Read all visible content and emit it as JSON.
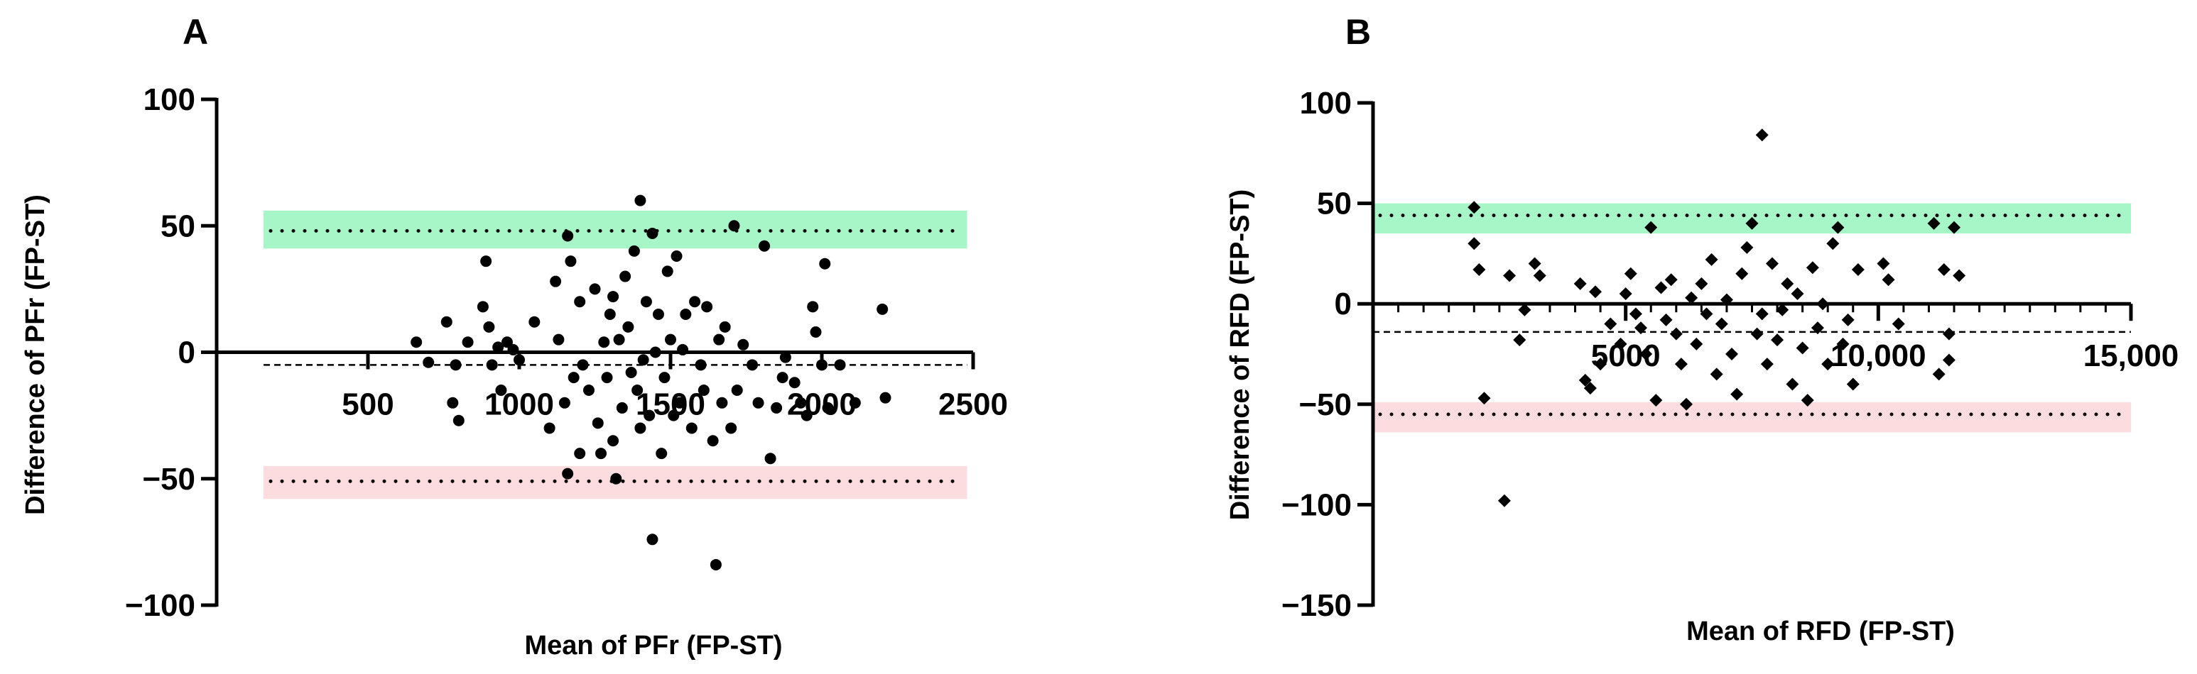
{
  "chart_data": [
    {
      "panel": "A",
      "type": "scatter",
      "subtype": "bland-altman",
      "title": "",
      "xlabel": "Mean of PFr (FP-ST)",
      "ylabel": "Difference of PFr (FP-ST)",
      "xlim": [
        0,
        2500
      ],
      "ylim": [
        -100,
        100
      ],
      "xticks": [
        500,
        1000,
        1500,
        2000,
        2500
      ],
      "xtick_labels": [
        "500",
        "1000",
        "1500",
        "2000",
        "2500"
      ],
      "yticks": [
        100,
        50,
        0,
        -50,
        -100
      ],
      "ytick_labels": [
        "100",
        "50",
        "0",
        "−50",
        "−100"
      ],
      "x_axis_at_y": 0,
      "band_xrange": [
        155,
        2480
      ],
      "upper_loa": 48,
      "upper_ci": [
        41,
        56
      ],
      "lower_loa": -51,
      "lower_ci": [
        -58,
        -45
      ],
      "bias": -5,
      "marker": "circle",
      "points": [
        [
          660,
          4
        ],
        [
          700,
          -4
        ],
        [
          760,
          12
        ],
        [
          780,
          -20
        ],
        [
          790,
          -5
        ],
        [
          800,
          -27
        ],
        [
          830,
          4
        ],
        [
          880,
          18
        ],
        [
          890,
          36
        ],
        [
          900,
          10
        ],
        [
          910,
          -5
        ],
        [
          930,
          2
        ],
        [
          940,
          -15
        ],
        [
          960,
          4
        ],
        [
          980,
          1
        ],
        [
          1000,
          -3
        ],
        [
          1050,
          12
        ],
        [
          1100,
          -30
        ],
        [
          1120,
          28
        ],
        [
          1130,
          5
        ],
        [
          1150,
          -20
        ],
        [
          1160,
          46
        ],
        [
          1160,
          -48
        ],
        [
          1170,
          36
        ],
        [
          1180,
          -10
        ],
        [
          1200,
          20
        ],
        [
          1200,
          -40
        ],
        [
          1210,
          -5
        ],
        [
          1230,
          -15
        ],
        [
          1250,
          25
        ],
        [
          1260,
          -28
        ],
        [
          1270,
          -40
        ],
        [
          1280,
          4
        ],
        [
          1290,
          -10
        ],
        [
          1300,
          15
        ],
        [
          1310,
          -35
        ],
        [
          1310,
          22
        ],
        [
          1320,
          -50
        ],
        [
          1330,
          5
        ],
        [
          1340,
          -22
        ],
        [
          1350,
          30
        ],
        [
          1360,
          10
        ],
        [
          1370,
          -8
        ],
        [
          1380,
          40
        ],
        [
          1390,
          -15
        ],
        [
          1400,
          60
        ],
        [
          1400,
          -30
        ],
        [
          1410,
          -3
        ],
        [
          1420,
          20
        ],
        [
          1430,
          -25
        ],
        [
          1440,
          47
        ],
        [
          1440,
          -74
        ],
        [
          1450,
          0
        ],
        [
          1460,
          15
        ],
        [
          1470,
          -40
        ],
        [
          1480,
          -10
        ],
        [
          1490,
          32
        ],
        [
          1500,
          5
        ],
        [
          1510,
          -25
        ],
        [
          1520,
          38
        ],
        [
          1530,
          -20
        ],
        [
          1540,
          1
        ],
        [
          1550,
          15
        ],
        [
          1570,
          -30
        ],
        [
          1580,
          20
        ],
        [
          1600,
          -5
        ],
        [
          1610,
          -15
        ],
        [
          1620,
          18
        ],
        [
          1640,
          -35
        ],
        [
          1650,
          -84
        ],
        [
          1660,
          5
        ],
        [
          1670,
          -20
        ],
        [
          1680,
          10
        ],
        [
          1700,
          -30
        ],
        [
          1710,
          50
        ],
        [
          1720,
          -15
        ],
        [
          1740,
          3
        ],
        [
          1770,
          -5
        ],
        [
          1790,
          -20
        ],
        [
          1810,
          42
        ],
        [
          1830,
          -42
        ],
        [
          1850,
          -22
        ],
        [
          1870,
          -10
        ],
        [
          1880,
          -2
        ],
        [
          1910,
          -12
        ],
        [
          1930,
          -20
        ],
        [
          1950,
          -25
        ],
        [
          1970,
          18
        ],
        [
          1980,
          8
        ],
        [
          2000,
          -5
        ],
        [
          2010,
          35
        ],
        [
          2020,
          -22
        ],
        [
          2060,
          -5
        ],
        [
          2110,
          -20
        ],
        [
          2200,
          17
        ],
        [
          2210,
          -18
        ]
      ]
    },
    {
      "panel": "B",
      "type": "scatter",
      "subtype": "bland-altman",
      "title": "",
      "xlabel": "Mean of  RFD  (FP-ST)",
      "ylabel": "Difference of  RFD (FP-ST)",
      "xlim": [
        0,
        15000
      ],
      "ylim": [
        -150,
        100
      ],
      "xticks": [
        5000,
        10000,
        15000
      ],
      "xtick_labels": [
        "5000",
        "10,000",
        "15,000"
      ],
      "yticks": [
        100,
        50,
        0,
        -50,
        -100,
        -150
      ],
      "ytick_labels": [
        "100",
        "50",
        "0",
        "−50",
        "−100",
        "−150"
      ],
      "x_axis_at_y": 0,
      "minor_xtick_step": 500,
      "band_xrange": [
        0,
        15000
      ],
      "upper_loa": 44,
      "upper_ci": [
        35,
        50
      ],
      "lower_loa": -55,
      "lower_ci": [
        -64,
        -49
      ],
      "bias": -14,
      "marker": "diamond",
      "points": [
        [
          2000,
          48
        ],
        [
          2000,
          30
        ],
        [
          2100,
          17
        ],
        [
          2200,
          -47
        ],
        [
          2600,
          -98
        ],
        [
          2700,
          14
        ],
        [
          2900,
          -18
        ],
        [
          3000,
          -3
        ],
        [
          3200,
          20
        ],
        [
          3300,
          14
        ],
        [
          4100,
          10
        ],
        [
          4200,
          -38
        ],
        [
          4300,
          -42
        ],
        [
          4400,
          6
        ],
        [
          4500,
          -30
        ],
        [
          4700,
          -10
        ],
        [
          4900,
          -20
        ],
        [
          5000,
          5
        ],
        [
          5100,
          15
        ],
        [
          5200,
          -5
        ],
        [
          5300,
          -12
        ],
        [
          5400,
          -25
        ],
        [
          5500,
          38
        ],
        [
          5600,
          -48
        ],
        [
          5700,
          8
        ],
        [
          5800,
          -8
        ],
        [
          5900,
          12
        ],
        [
          6000,
          -15
        ],
        [
          6100,
          -30
        ],
        [
          6200,
          -50
        ],
        [
          6300,
          3
        ],
        [
          6400,
          -20
        ],
        [
          6500,
          10
        ],
        [
          6600,
          -5
        ],
        [
          6700,
          22
        ],
        [
          6800,
          -35
        ],
        [
          6900,
          -10
        ],
        [
          7000,
          2
        ],
        [
          7100,
          -25
        ],
        [
          7200,
          -45
        ],
        [
          7300,
          15
        ],
        [
          7400,
          28
        ],
        [
          7500,
          40
        ],
        [
          7600,
          -15
        ],
        [
          7700,
          84
        ],
        [
          7700,
          -5
        ],
        [
          7800,
          -30
        ],
        [
          7900,
          20
        ],
        [
          8000,
          -18
        ],
        [
          8100,
          -3
        ],
        [
          8200,
          10
        ],
        [
          8300,
          -40
        ],
        [
          8400,
          5
        ],
        [
          8500,
          -22
        ],
        [
          8600,
          -48
        ],
        [
          8700,
          18
        ],
        [
          8800,
          -12
        ],
        [
          8900,
          0
        ],
        [
          9000,
          -30
        ],
        [
          9100,
          30
        ],
        [
          9200,
          38
        ],
        [
          9300,
          -20
        ],
        [
          9400,
          -8
        ],
        [
          9500,
          -40
        ],
        [
          9600,
          17
        ],
        [
          10100,
          20
        ],
        [
          10200,
          12
        ],
        [
          10400,
          -10
        ],
        [
          11100,
          40
        ],
        [
          11200,
          -35
        ],
        [
          11300,
          17
        ],
        [
          11400,
          -15
        ],
        [
          11400,
          -28
        ],
        [
          11500,
          38
        ],
        [
          11600,
          14
        ]
      ]
    }
  ],
  "colors": {
    "upper_band": "#a6f6c8",
    "lower_band": "#fcdcdf",
    "ink": "#000000"
  }
}
